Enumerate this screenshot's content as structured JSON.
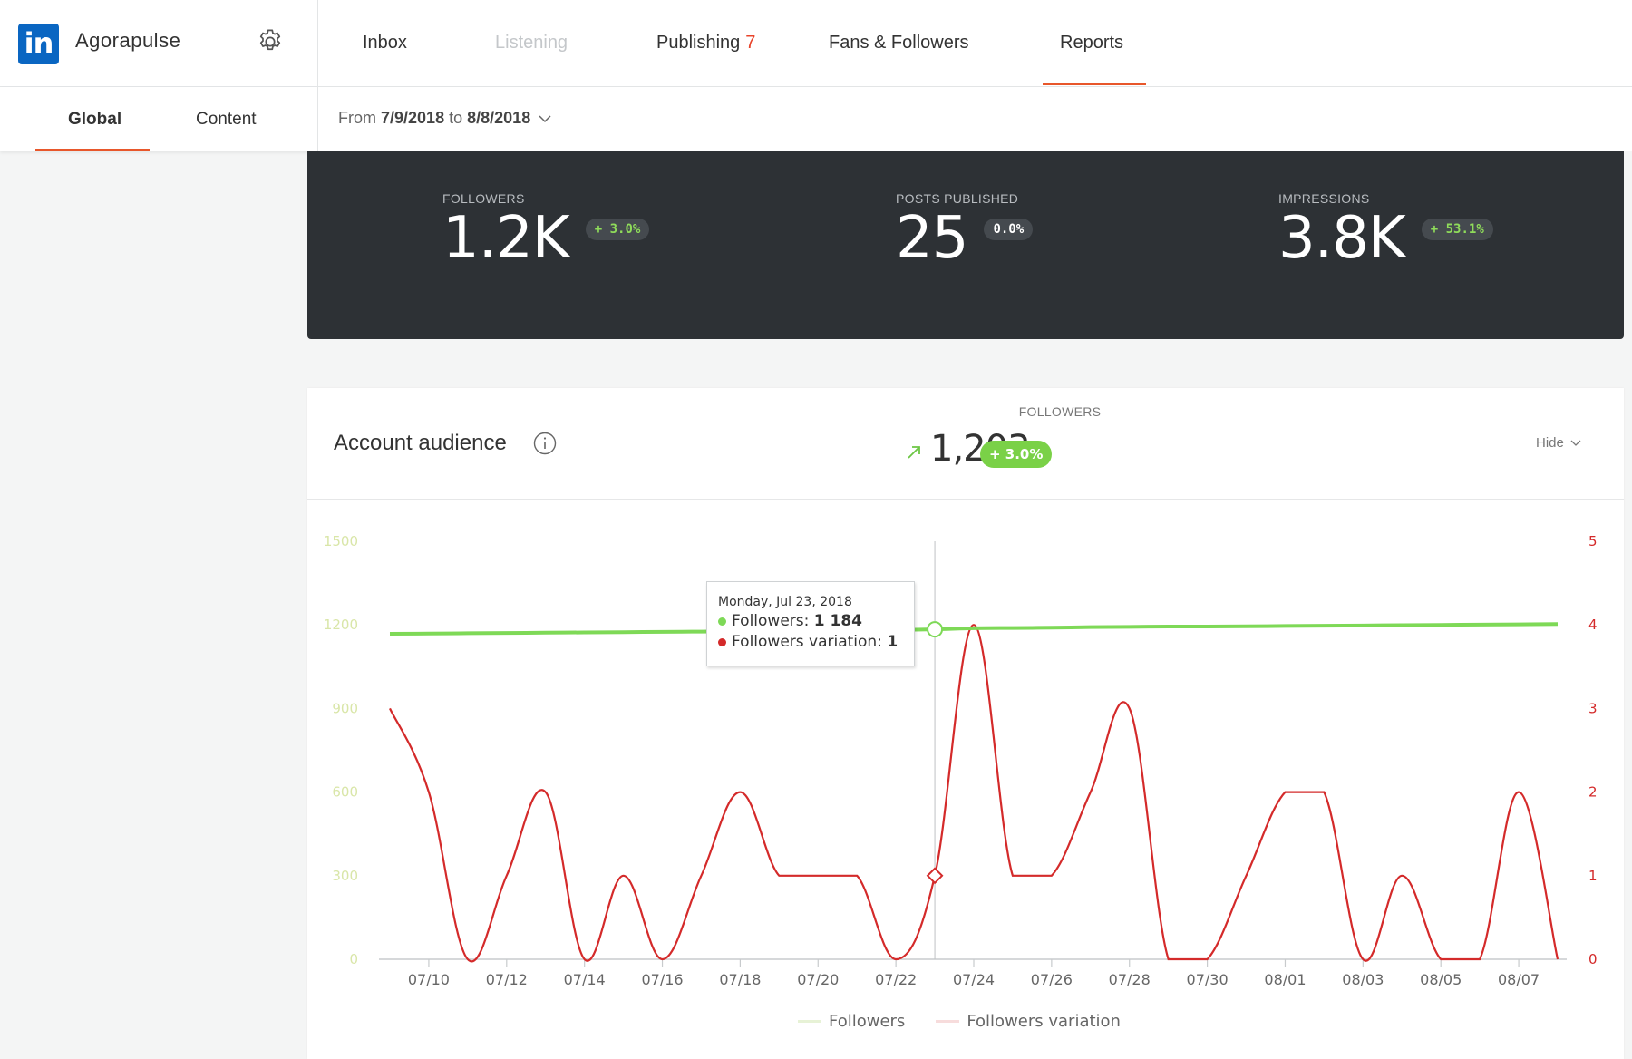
{
  "brand": {
    "logo_text": "in",
    "name": "Agorapulse"
  },
  "nav": {
    "items": [
      {
        "label": "Inbox",
        "disabled": false
      },
      {
        "label": "Listening",
        "disabled": true
      },
      {
        "label": "Publishing",
        "badge": "7",
        "disabled": false
      },
      {
        "label": "Fans & Followers",
        "disabled": false
      },
      {
        "label": "Reports",
        "active": true,
        "disabled": false
      }
    ]
  },
  "subtabs": [
    {
      "label": "Global",
      "active": true
    },
    {
      "label": "Content",
      "active": false
    }
  ],
  "date_range": {
    "prefix": "From",
    "start": "7/9/2018",
    "mid": "to",
    "end": "8/8/2018"
  },
  "kpis": [
    {
      "label": "FOLLOWERS",
      "value": "1.2K",
      "change": "+ 3.0%"
    },
    {
      "label": "POSTS PUBLISHED",
      "value": "25",
      "change": "0.0%"
    },
    {
      "label": "IMPRESSIONS",
      "value": "3.8K",
      "change": "+ 53.1%"
    }
  ],
  "audience": {
    "title": "Account audience",
    "metric_label": "FOLLOWERS",
    "metric_value": "1,203",
    "metric_change": "+ 3.0%",
    "hide_label": "Hide"
  },
  "tooltip": {
    "date": "Monday, Jul 23, 2018",
    "followers_label": "Followers:",
    "followers_value": "1 184",
    "variation_label": "Followers variation:",
    "variation_value": "1"
  },
  "legend": {
    "followers": "Followers",
    "variation": "Followers variation"
  },
  "colors": {
    "accent": "#e8572b",
    "followers": "#7ed957",
    "variation": "#d42a2a",
    "left_axis": "#d9e6a8",
    "panel": "#2d3135"
  },
  "chart_data": {
    "type": "line",
    "x": [
      "07/09",
      "07/10",
      "07/11",
      "07/12",
      "07/13",
      "07/14",
      "07/15",
      "07/16",
      "07/17",
      "07/18",
      "07/19",
      "07/20",
      "07/21",
      "07/22",
      "07/23",
      "07/24",
      "07/25",
      "07/26",
      "07/27",
      "07/28",
      "07/29",
      "07/30",
      "07/31",
      "08/01",
      "08/02",
      "08/03",
      "08/04",
      "08/05",
      "08/06",
      "08/07",
      "08/08"
    ],
    "x_ticks": [
      "07/10",
      "07/12",
      "07/14",
      "07/16",
      "07/18",
      "07/20",
      "07/22",
      "07/24",
      "07/26",
      "07/28",
      "07/30",
      "08/01",
      "08/03",
      "08/05",
      "08/07"
    ],
    "series": [
      {
        "name": "Followers",
        "axis": "left",
        "values": [
          1168,
          1169,
          1170,
          1171,
          1172,
          1173,
          1174,
          1175,
          1176,
          1177,
          1178,
          1179,
          1180,
          1182,
          1184,
          1188,
          1189,
          1190,
          1192,
          1193,
          1194,
          1194,
          1195,
          1196,
          1197,
          1198,
          1199,
          1200,
          1201,
          1202,
          1203
        ]
      },
      {
        "name": "Followers variation",
        "axis": "right",
        "values": [
          3,
          2,
          0,
          1,
          2,
          0,
          1,
          0,
          1,
          2,
          1,
          1,
          1,
          0,
          1,
          4,
          1,
          1,
          2,
          3,
          0,
          0,
          1,
          2,
          2,
          0,
          1,
          0,
          0,
          2,
          0
        ]
      }
    ],
    "y_left": {
      "ticks": [
        "0",
        "300",
        "600",
        "900",
        "1200",
        "1500"
      ],
      "range": [
        0,
        1500
      ]
    },
    "y_right": {
      "ticks": [
        "0",
        "1",
        "2",
        "3",
        "4",
        "5"
      ],
      "range": [
        0,
        5
      ]
    },
    "highlight_index": 14,
    "legend_position": "bottom"
  }
}
